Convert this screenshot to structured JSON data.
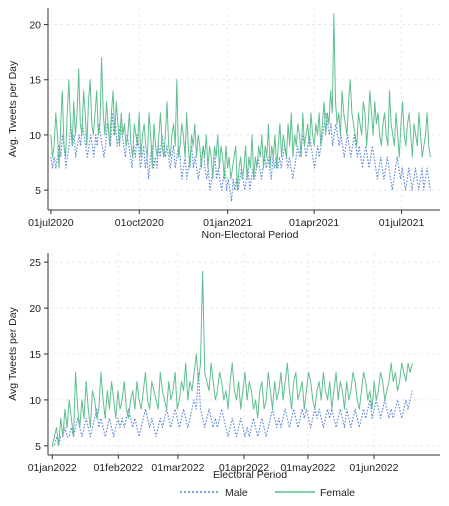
{
  "colors": {
    "male": "#5b86d6",
    "female": "#5fbf8f",
    "grid": "#e6e6e6",
    "axis": "#333333"
  },
  "legend": {
    "placement": "bottom-center",
    "male_label": "Male",
    "female_label": "Female"
  },
  "chart_data": [
    {
      "type": "line",
      "xlabel": "Non-Electoral Period",
      "ylabel": "Avg. Tweets per Day",
      "x_start": "2020-07-01",
      "x_end": "2021-07-31",
      "xlim": [
        "2020-06-28",
        "2021-08-10"
      ],
      "ylim": [
        3.2,
        21.5
      ],
      "yticks": [
        5,
        10,
        15,
        20
      ],
      "ytick_labels": [
        "5",
        "10",
        "15",
        "20"
      ],
      "xticks": [
        "2020-07-01",
        "2020-10-01",
        "2021-01-01",
        "2021-04-01",
        "2021-07-01"
      ],
      "xtick_labels": [
        "01jul2020",
        "01oct2020",
        "01jan2021",
        "01apr2021",
        "01jul2021"
      ],
      "grid": true,
      "series": [
        {
          "name": "Male",
          "style": "dotted",
          "values": [
            8,
            7,
            8,
            7,
            8,
            9,
            8,
            10,
            9,
            7,
            8,
            9,
            11,
            9,
            10,
            8,
            9,
            10,
            9,
            11,
            10,
            9,
            8,
            9,
            10,
            9,
            8,
            10,
            9,
            11,
            10,
            9,
            8,
            9,
            11,
            10,
            9,
            12,
            10,
            11,
            9,
            10,
            11,
            10,
            9,
            8,
            10,
            9,
            8,
            7,
            9,
            8,
            10,
            9,
            7,
            8,
            9,
            7,
            8,
            6,
            8,
            9,
            7,
            8,
            7,
            9,
            8,
            10,
            9,
            8,
            9,
            8,
            7,
            8,
            9,
            7,
            8,
            9,
            8,
            6,
            7,
            8,
            6,
            7,
            8,
            9,
            7,
            8,
            7,
            6,
            7,
            8,
            9,
            7,
            6,
            7,
            5,
            6,
            7,
            8,
            6,
            7,
            6,
            5,
            6,
            7,
            5,
            6,
            5,
            4,
            6,
            5,
            6,
            5,
            6,
            7,
            6,
            5,
            6,
            7,
            5,
            6,
            7,
            6,
            7,
            8,
            7,
            6,
            7,
            8,
            7,
            8,
            7,
            6,
            8,
            7,
            8,
            7,
            8,
            7,
            8,
            9,
            8,
            7,
            8,
            7,
            6,
            7,
            8,
            9,
            8,
            9,
            10,
            9,
            8,
            9,
            10,
            9,
            8,
            7,
            8,
            9,
            8,
            9,
            10,
            11,
            12,
            11,
            10,
            11,
            9,
            10,
            11,
            10,
            9,
            10,
            9,
            8,
            9,
            10,
            9,
            8,
            9,
            10,
            9,
            8,
            9,
            8,
            7,
            8,
            9,
            8,
            7,
            8,
            9,
            8,
            7,
            6,
            7,
            8,
            7,
            6,
            7,
            8,
            7,
            6,
            5,
            6,
            7,
            8,
            7,
            6,
            7,
            6,
            5,
            6,
            7,
            6,
            5,
            6,
            7,
            6,
            5,
            6,
            7,
            5,
            6,
            7,
            6,
            5
          ]
        },
        {
          "name": "Female",
          "style": "solid",
          "values": [
            10,
            8,
            9,
            12,
            10,
            7,
            11,
            14,
            9,
            8,
            12,
            15,
            11,
            9,
            13,
            10,
            12,
            16,
            11,
            10,
            14,
            12,
            9,
            13,
            15,
            11,
            10,
            12,
            14,
            10,
            11,
            17,
            12,
            10,
            13,
            11,
            9,
            12,
            14,
            10,
            13,
            11,
            9,
            12,
            10,
            11,
            9,
            10,
            12,
            9,
            8,
            11,
            10,
            9,
            12,
            8,
            10,
            11,
            9,
            8,
            12,
            10,
            7,
            11,
            9,
            8,
            10,
            12,
            9,
            8,
            10,
            13,
            9,
            8,
            10,
            11,
            9,
            15,
            8,
            9,
            11,
            10,
            8,
            12,
            9,
            7,
            10,
            9,
            11,
            8,
            10,
            9,
            7,
            9,
            8,
            10,
            7,
            9,
            8,
            6,
            9,
            8,
            10,
            7,
            9,
            8,
            6,
            9,
            7,
            8,
            6,
            7,
            8,
            9,
            5,
            7,
            8,
            6,
            7,
            9,
            6,
            8,
            7,
            10,
            6,
            8,
            7,
            9,
            8,
            10,
            7,
            9,
            8,
            11,
            7,
            9,
            8,
            10,
            7,
            9,
            11,
            8,
            10,
            9,
            8,
            11,
            9,
            12,
            8,
            10,
            9,
            11,
            10,
            8,
            12,
            9,
            10,
            11,
            9,
            12,
            10,
            9,
            11,
            10,
            12,
            9,
            11,
            13,
            10,
            12,
            11,
            14,
            12,
            21,
            13,
            11,
            12,
            10,
            14,
            12,
            11,
            10,
            13,
            15,
            12,
            11,
            10,
            9,
            12,
            11,
            10,
            13,
            12,
            9,
            11,
            14,
            12,
            10,
            13,
            11,
            12,
            10,
            9,
            11,
            12,
            10,
            9,
            14,
            11,
            10,
            9,
            12,
            10,
            8,
            11,
            13,
            10,
            9,
            11,
            12,
            10,
            8,
            11,
            10,
            9,
            12,
            10,
            8,
            9,
            10,
            12,
            9,
            8
          ]
        }
      ]
    },
    {
      "type": "line",
      "xlabel": "Electoral Period",
      "ylabel": "Avg Tweets per Day",
      "x_start": "2022-01-01",
      "x_end": "2022-06-19",
      "xlim": [
        "2021-12-30",
        "2022-07-02"
      ],
      "ylim": [
        4.0,
        26.0
      ],
      "yticks": [
        5,
        10,
        15,
        20,
        25
      ],
      "ytick_labels": [
        "5",
        "10",
        "15",
        "20",
        "25"
      ],
      "xticks": [
        "2022-01-01",
        "2022-02-01",
        "2022-03-01",
        "2022-04-01",
        "2022-05-01",
        "2022-06-01"
      ],
      "xtick_labels": [
        "01jan2022",
        "01feb2022",
        "01mar2022",
        "01apr2022",
        "01may2022",
        "01jun2022"
      ],
      "grid": true,
      "series": [
        {
          "name": "Male",
          "style": "dotted",
          "values": [
            5,
            5,
            6,
            5,
            6,
            6,
            7,
            6,
            6,
            7,
            6,
            7,
            8,
            7,
            6,
            7,
            8,
            7,
            6,
            7,
            8,
            9,
            7,
            8,
            7,
            6,
            7,
            8,
            7,
            6,
            7,
            8,
            7,
            8,
            7,
            8,
            9,
            8,
            7,
            8,
            7,
            6,
            7,
            8,
            9,
            8,
            7,
            8,
            7,
            6,
            7,
            8,
            7,
            8,
            9,
            8,
            7,
            8,
            9,
            8,
            7,
            8,
            9,
            8,
            7,
            8,
            9,
            10,
            9,
            13,
            9,
            8,
            7,
            8,
            9,
            8,
            7,
            8,
            7,
            8,
            9,
            8,
            7,
            6,
            7,
            8,
            7,
            6,
            7,
            8,
            7,
            6,
            7,
            6,
            7,
            8,
            7,
            6,
            7,
            8,
            7,
            6,
            7,
            8,
            9,
            8,
            7,
            8,
            7,
            8,
            9,
            8,
            7,
            8,
            9,
            8,
            7,
            8,
            9,
            8,
            9,
            8,
            7,
            8,
            9,
            8,
            9,
            8,
            7,
            8,
            9,
            8,
            9,
            8,
            7,
            8,
            9,
            8,
            7,
            9,
            8,
            7,
            8,
            9,
            8,
            7,
            8,
            9,
            8,
            9,
            10,
            8,
            9,
            10,
            9,
            8,
            9,
            10,
            9,
            8,
            9,
            8,
            9,
            10,
            9,
            8,
            9,
            10,
            9,
            10,
            11
          ]
        },
        {
          "name": "Female",
          "style": "solid",
          "values": [
            5,
            6,
            7,
            5,
            8,
            6,
            9,
            7,
            10,
            8,
            6,
            13,
            9,
            7,
            10,
            8,
            12,
            9,
            7,
            11,
            10,
            8,
            9,
            13,
            10,
            8,
            11,
            9,
            12,
            10,
            8,
            11,
            9,
            10,
            12,
            9,
            8,
            10,
            11,
            9,
            12,
            10,
            9,
            11,
            13,
            10,
            9,
            12,
            11,
            10,
            9,
            13,
            11,
            10,
            9,
            12,
            10,
            11,
            13,
            9,
            10,
            12,
            11,
            14,
            10,
            12,
            11,
            13,
            15,
            12,
            14,
            24,
            13,
            12,
            11,
            14,
            12,
            10,
            11,
            13,
            12,
            10,
            11,
            9,
            12,
            14,
            11,
            10,
            12,
            9,
            11,
            13,
            10,
            12,
            11,
            9,
            10,
            8,
            11,
            12,
            9,
            10,
            13,
            11,
            9,
            12,
            10,
            11,
            13,
            10,
            12,
            14,
            11,
            9,
            12,
            13,
            10,
            11,
            12,
            9,
            11,
            13,
            12,
            10,
            9,
            11,
            12,
            10,
            13,
            11,
            10,
            12,
            9,
            11,
            13,
            10,
            12,
            11,
            9,
            12,
            10,
            11,
            13,
            12,
            10,
            9,
            11,
            13,
            12,
            10,
            11,
            9,
            12,
            10,
            11,
            13,
            12,
            10,
            11,
            12,
            14,
            12,
            13,
            11,
            12,
            14,
            13,
            12,
            14,
            13,
            14
          ]
        }
      ]
    }
  ]
}
